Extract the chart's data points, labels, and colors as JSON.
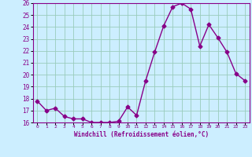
{
  "x": [
    0,
    1,
    2,
    3,
    4,
    5,
    6,
    7,
    8,
    9,
    10,
    11,
    12,
    13,
    14,
    15,
    16,
    17,
    18,
    19,
    20,
    21,
    22,
    23
  ],
  "y": [
    17.8,
    17.0,
    17.2,
    16.5,
    16.3,
    16.3,
    16.0,
    16.0,
    16.0,
    16.1,
    17.3,
    16.6,
    19.5,
    21.9,
    24.1,
    25.7,
    26.0,
    25.5,
    22.4,
    24.2,
    23.1,
    21.9,
    20.1,
    19.5
  ],
  "line_color": "#880088",
  "marker": "D",
  "marker_size": 2.5,
  "bg_color": "#cceeff",
  "grid_color": "#99ccbb",
  "xlabel": "Windchill (Refroidissement éolien,°C)",
  "xlabel_color": "#880088",
  "tick_color": "#880088",
  "spine_color": "#880088",
  "ylim": [
    16,
    26
  ],
  "xlim": [
    -0.5,
    23.5
  ],
  "yticks": [
    16,
    17,
    18,
    19,
    20,
    21,
    22,
    23,
    24,
    25,
    26
  ],
  "xticks": [
    0,
    1,
    2,
    3,
    4,
    5,
    6,
    7,
    8,
    9,
    10,
    11,
    12,
    13,
    14,
    15,
    16,
    17,
    18,
    19,
    20,
    21,
    22,
    23
  ]
}
